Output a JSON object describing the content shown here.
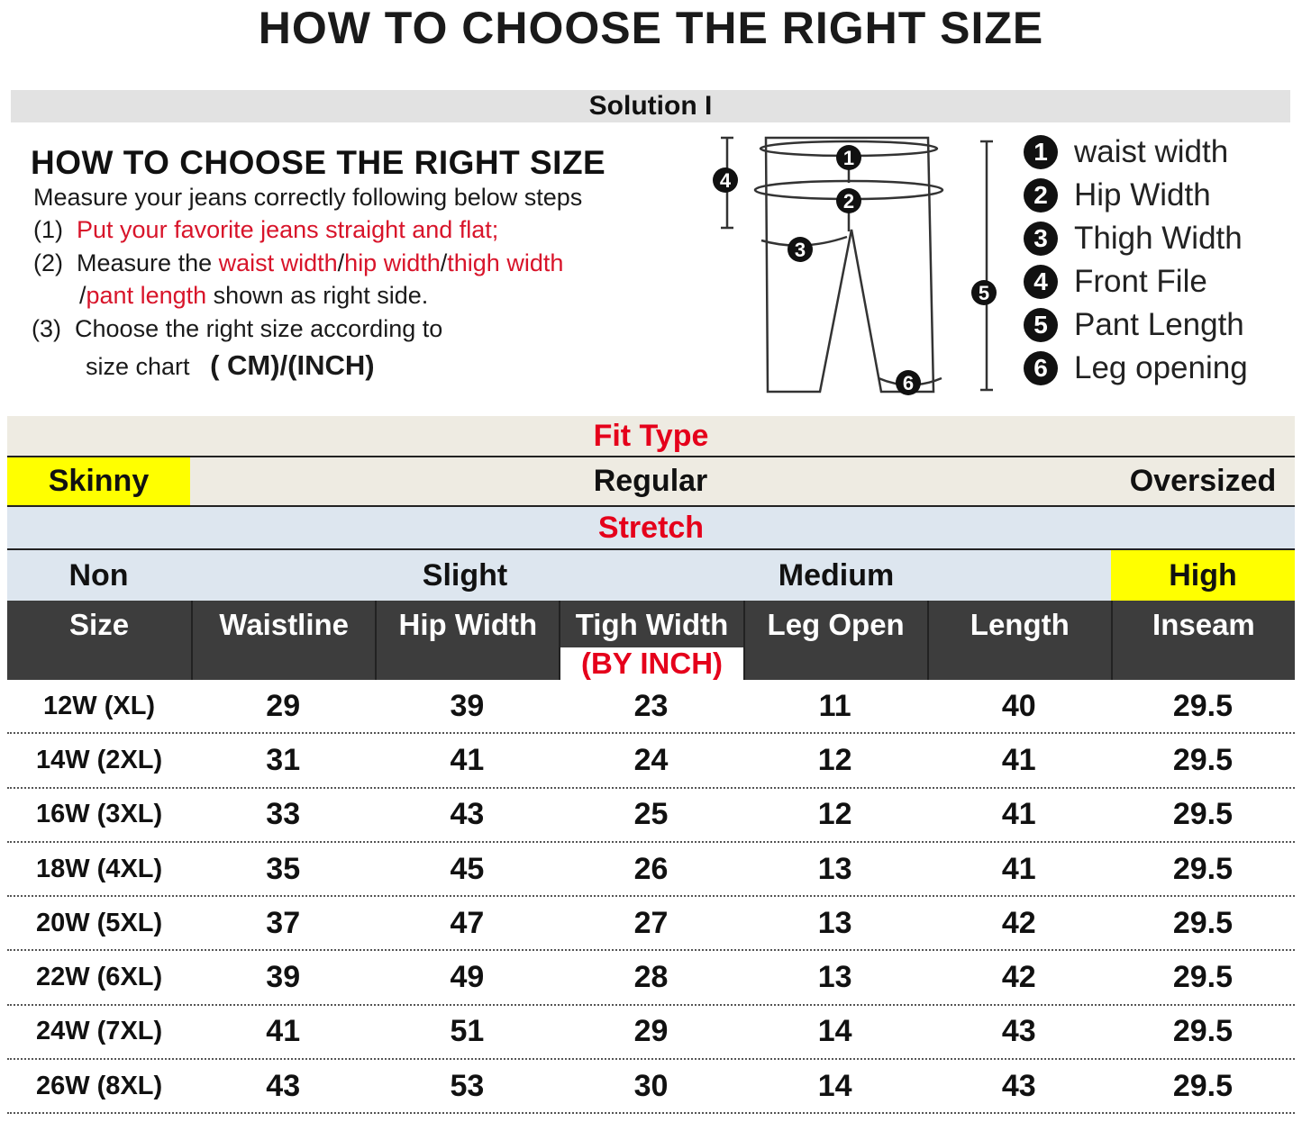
{
  "title": "HOW TO CHOOSE THE RIGHT SIZE",
  "solution": "Solution I",
  "guide": {
    "title": "HOW TO CHOOSE THE RIGHT SIZE",
    "intro": "Measure your jeans correctly following below steps",
    "step1_num": "(1)",
    "step1": "Put your favorite jeans straight and flat;",
    "step2_num": "(2)",
    "step2_a": "Measure the ",
    "step2_b": "waist width",
    "step2_c": "/",
    "step2_d": "hip width",
    "step2_e": "/",
    "step2_f": "thigh width",
    "step2_g": "/",
    "step2_h": "pant length",
    "step2_i": " shown as right side.",
    "step3_num": "(3)",
    "step3_a": "Choose the right size according to",
    "step3_b": "size chart",
    "step3_unit": "( CM)/(INCH)"
  },
  "diagram": {
    "markers": [
      "1",
      "2",
      "3",
      "4",
      "5",
      "6"
    ]
  },
  "legend": [
    {
      "num": "1",
      "label": "waist width"
    },
    {
      "num": "2",
      "label": "Hip Width"
    },
    {
      "num": "3",
      "label": "Thigh Width"
    },
    {
      "num": "4",
      "label": "Front File"
    },
    {
      "num": "5",
      "label": "Pant Length"
    },
    {
      "num": "6",
      "label": "Leg opening"
    }
  ],
  "table": {
    "fit_type_label": "Fit Type",
    "fit_types": [
      "Skinny",
      "Regular",
      "Oversized"
    ],
    "stretch_label": "Stretch",
    "stretch_levels": [
      "Non",
      "Slight",
      "Medium",
      "High"
    ],
    "headers": [
      "Size",
      "Waistline",
      "Hip Width",
      "Tigh Width",
      "Leg Open",
      "Length",
      "Inseam"
    ],
    "unit": "(BY INCH)",
    "rows": [
      [
        "12W (XL)",
        "29",
        "39",
        "23",
        "11",
        "40",
        "29.5"
      ],
      [
        "14W (2XL)",
        "31",
        "41",
        "24",
        "12",
        "41",
        "29.5"
      ],
      [
        "16W (3XL)",
        "33",
        "43",
        "25",
        "12",
        "41",
        "29.5"
      ],
      [
        "18W (4XL)",
        "35",
        "45",
        "26",
        "13",
        "41",
        "29.5"
      ],
      [
        "20W (5XL)",
        "37",
        "47",
        "27",
        "13",
        "42",
        "29.5"
      ],
      [
        "22W (6XL)",
        "39",
        "49",
        "28",
        "13",
        "42",
        "29.5"
      ],
      [
        "24W (7XL)",
        "41",
        "51",
        "29",
        "14",
        "43",
        "29.5"
      ],
      [
        "26W (8XL)",
        "43",
        "53",
        "30",
        "14",
        "43",
        "29.5"
      ]
    ]
  },
  "colors": {
    "highlight": "#ffff00",
    "red": "#e5001b",
    "fit_bg": "#eeebe2",
    "stretch_bg": "#dde6ef",
    "header_bg": "#3d3d3d"
  }
}
